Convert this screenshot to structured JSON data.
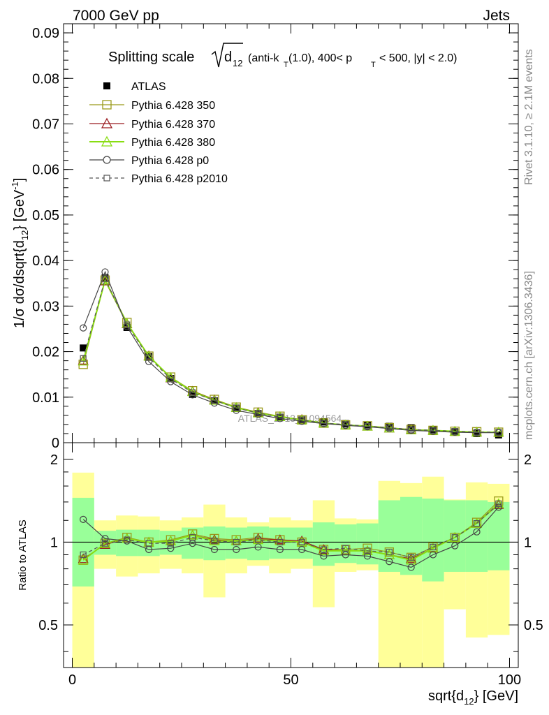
{
  "header": {
    "left": "7000 GeV pp",
    "right": "Jets"
  },
  "side_labels": {
    "rivet": "Rivet 3.1.10, ≥ 2.1M events",
    "mcplots": "mcplots.cern.ch [arXiv:1306.3436]"
  },
  "chart_data": [
    {
      "type": "line",
      "title_main": "Splitting scale",
      "title_sqrt_base": "d",
      "title_sqrt_sub": "12",
      "title_tail": "(anti-k",
      "title_tail_sub": "T",
      "title_tail2": "(1.0), 400< p",
      "title_tail2_sub": "T",
      "title_tail3": "< 500, |y| < 2.0)",
      "ylabel": "1/σ dσ/dsqrt{d",
      "ylabel_sub": "12",
      "ylabel_tail": "} [GeV",
      "ylabel_sup": "-1",
      "ylabel_end": "]",
      "watermark": "ATLAS_2013_I1094564",
      "xlim": [
        -2,
        102
      ],
      "ylim": [
        0,
        0.092
      ],
      "y_ticks": [
        0,
        0.01,
        0.02,
        0.03,
        0.04,
        0.05,
        0.06,
        0.07,
        0.08,
        0.09
      ],
      "y_tick_labels": [
        "0",
        "0.01",
        "0.02",
        "0.03",
        "0.04",
        "0.05",
        "0.06",
        "0.07",
        "0.08",
        "0.09"
      ],
      "legend_position": "top-left",
      "x": [
        2.5,
        7.5,
        12.5,
        17.5,
        22.5,
        27.5,
        32.5,
        37.5,
        42.5,
        47.5,
        52.5,
        57.5,
        62.5,
        67.5,
        72.5,
        77.5,
        82.5,
        87.5,
        92.5,
        97.5
      ],
      "series": [
        {
          "name": "ATLAS",
          "color": "#000000",
          "marker": "filled-square",
          "values": [
            0.0208,
            0.0362,
            0.0253,
            0.0189,
            0.0141,
            0.0106,
            0.0092,
            0.0076,
            0.0064,
            0.0056,
            0.005,
            0.0046,
            0.0042,
            0.0039,
            0.0036,
            0.0033,
            0.0028,
            0.0024,
            0.002,
            0.0017
          ]
        },
        {
          "name": "Pythia 6.428 350",
          "color": "#9a9a1a",
          "marker": "open-square",
          "dash": "",
          "values": [
            0.0172,
            0.0357,
            0.0264,
            0.019,
            0.0144,
            0.0114,
            0.0095,
            0.0078,
            0.0067,
            0.0058,
            0.005,
            0.0043,
            0.0039,
            0.0037,
            0.0033,
            0.0029,
            0.0027,
            0.0025,
            0.0024,
            0.0023
          ]
        },
        {
          "name": "Pythia 6.428 370",
          "color": "#9b1c20",
          "marker": "open-triangle",
          "dash": "",
          "values": [
            0.0181,
            0.0355,
            0.0261,
            0.0191,
            0.0142,
            0.0113,
            0.0094,
            0.0077,
            0.0066,
            0.0057,
            0.0051,
            0.0043,
            0.0039,
            0.0036,
            0.0032,
            0.0029,
            0.0027,
            0.0025,
            0.0023,
            0.0023
          ]
        },
        {
          "name": "Pythia 6.428 380",
          "color": "#88dd11",
          "marker": "open-triangle",
          "dash": "",
          "values": [
            0.0179,
            0.0357,
            0.0262,
            0.019,
            0.0143,
            0.0112,
            0.0093,
            0.0077,
            0.0065,
            0.0057,
            0.005,
            0.0043,
            0.0039,
            0.0036,
            0.0032,
            0.0028,
            0.0027,
            0.0025,
            0.0023,
            0.0023
          ]
        },
        {
          "name": "Pythia 6.428 p0",
          "color": "#444444",
          "marker": "open-circle",
          "dash": "",
          "values": [
            0.0252,
            0.0375,
            0.0255,
            0.0178,
            0.0134,
            0.0105,
            0.0087,
            0.0071,
            0.0062,
            0.0053,
            0.0047,
            0.0042,
            0.0038,
            0.0035,
            0.0031,
            0.0027,
            0.0025,
            0.0023,
            0.0022,
            0.0022
          ]
        },
        {
          "name": "Pythia 6.428 p2010",
          "color": "#555555",
          "marker": "open-square-small",
          "dash": "5,4",
          "values": [
            0.0185,
            0.036,
            0.0259,
            0.0187,
            0.014,
            0.011,
            0.0093,
            0.0076,
            0.0065,
            0.0056,
            0.005,
            0.0043,
            0.004,
            0.0036,
            0.0033,
            0.0029,
            0.0027,
            0.0025,
            0.0023,
            0.0023
          ]
        }
      ]
    },
    {
      "type": "line",
      "ylabel": "Ratio to ATLAS",
      "xlabel_main": "sqrt{d",
      "xlabel_sub": "12",
      "xlabel_tail": "} [GeV]",
      "xlim": [
        -2,
        102
      ],
      "ylim": [
        0.35,
        2.3
      ],
      "y_ticks": [
        0.5,
        1,
        2
      ],
      "y_tick_labels": [
        "0.5",
        "1",
        "2"
      ],
      "x_ticks": [
        0,
        50,
        100
      ],
      "x_tick_labels": [
        "0",
        "50",
        "100"
      ],
      "reference_line": 1,
      "bin_edges": [
        0,
        5,
        10,
        15,
        20,
        25,
        30,
        35,
        40,
        45,
        50,
        55,
        60,
        65,
        70,
        75,
        80,
        85,
        90,
        95,
        100
      ],
      "band_inner": [
        [
          0.69,
          1.45
        ],
        [
          0.9,
          1.1
        ],
        [
          0.89,
          1.11
        ],
        [
          0.89,
          1.11
        ],
        [
          0.9,
          1.1
        ],
        [
          0.87,
          1.13
        ],
        [
          0.86,
          1.14
        ],
        [
          0.87,
          1.13
        ],
        [
          0.86,
          1.14
        ],
        [
          0.87,
          1.13
        ],
        [
          0.87,
          1.13
        ],
        [
          0.82,
          1.18
        ],
        [
          0.84,
          1.16
        ],
        [
          0.83,
          1.17
        ],
        [
          0.78,
          1.42
        ],
        [
          0.76,
          1.46
        ],
        [
          0.72,
          1.44
        ],
        [
          0.78,
          1.42
        ],
        [
          0.78,
          1.42
        ],
        [
          0.79,
          1.4
        ]
      ],
      "band_outer": [
        [
          0.35,
          1.79
        ],
        [
          0.8,
          1.2
        ],
        [
          0.75,
          1.25
        ],
        [
          0.77,
          1.24
        ],
        [
          0.8,
          1.2
        ],
        [
          0.77,
          1.23
        ],
        [
          0.63,
          1.37
        ],
        [
          0.77,
          1.23
        ],
        [
          0.82,
          1.18
        ],
        [
          0.77,
          1.23
        ],
        [
          0.8,
          1.2
        ],
        [
          0.58,
          1.42
        ],
        [
          0.78,
          1.22
        ],
        [
          0.79,
          1.21
        ],
        [
          0.35,
          1.67
        ],
        [
          0.35,
          1.64
        ],
        [
          0.35,
          1.73
        ],
        [
          0.57,
          1.43
        ],
        [
          0.45,
          1.65
        ],
        [
          0.46,
          1.63
        ]
      ],
      "series": [
        {
          "name": "Pythia 6.428 350",
          "color": "#9a9a1a",
          "marker": "open-square",
          "dash": "",
          "values": [
            0.86,
            0.99,
            1.04,
            1.0,
            1.02,
            1.07,
            1.03,
            1.02,
            1.04,
            1.02,
            1.0,
            0.94,
            0.94,
            0.95,
            0.92,
            0.88,
            0.96,
            1.04,
            1.18,
            1.41
          ]
        },
        {
          "name": "Pythia 6.428 370",
          "color": "#9b1c20",
          "marker": "open-triangle",
          "dash": "",
          "values": [
            0.87,
            0.98,
            1.03,
            1.0,
            1.01,
            1.06,
            1.02,
            1.01,
            1.03,
            1.02,
            1.01,
            0.94,
            0.93,
            0.93,
            0.9,
            0.87,
            0.95,
            1.04,
            1.17,
            1.37
          ]
        },
        {
          "name": "Pythia 6.428 380",
          "color": "#88dd11",
          "marker": "open-triangle",
          "dash": "",
          "values": [
            0.86,
            0.99,
            1.03,
            1.0,
            1.01,
            1.06,
            1.01,
            1.01,
            1.02,
            1.01,
            1.0,
            0.93,
            0.93,
            0.93,
            0.9,
            0.86,
            0.95,
            1.04,
            1.17,
            1.38
          ]
        },
        {
          "name": "Pythia 6.428 p0",
          "color": "#444444",
          "marker": "open-circle",
          "dash": "",
          "values": [
            1.21,
            1.03,
            1.01,
            0.94,
            0.95,
            0.99,
            0.94,
            0.94,
            0.96,
            0.94,
            0.94,
            0.89,
            0.9,
            0.89,
            0.85,
            0.81,
            0.9,
            0.97,
            1.09,
            1.34
          ]
        },
        {
          "name": "Pythia 6.428 p2010",
          "color": "#555555",
          "marker": "open-square-small",
          "dash": "5,4",
          "values": [
            0.9,
            0.99,
            1.02,
            0.99,
            0.99,
            1.04,
            1.01,
            1.0,
            1.02,
            1.0,
            1.0,
            0.94,
            0.95,
            0.93,
            0.92,
            0.88,
            0.96,
            1.04,
            1.17,
            1.38
          ]
        }
      ]
    }
  ]
}
